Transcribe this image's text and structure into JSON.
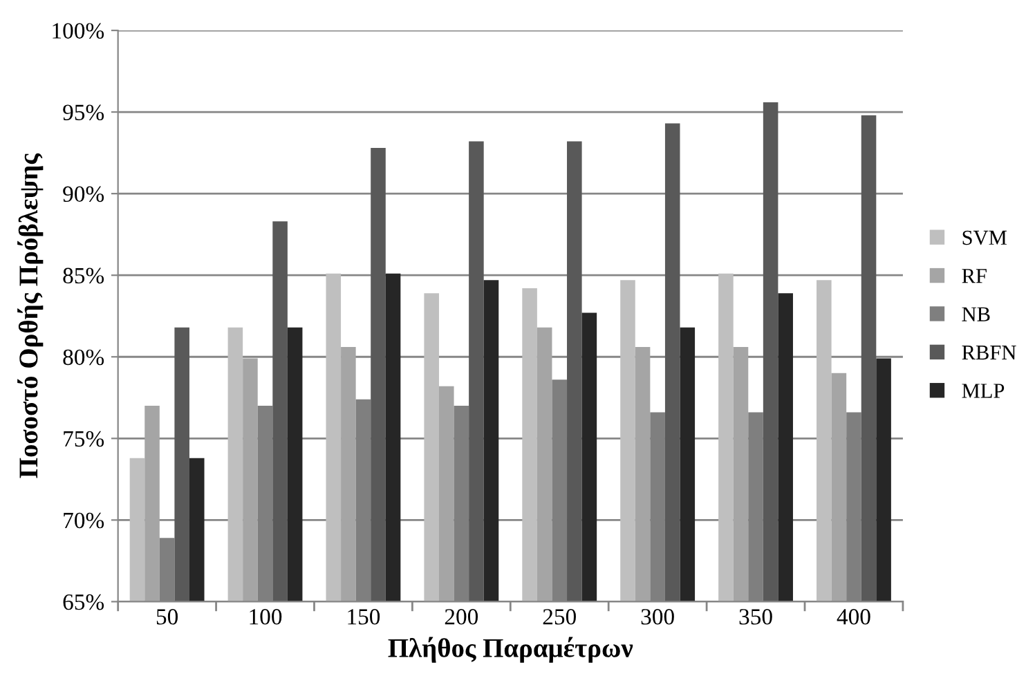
{
  "chart_data": {
    "type": "bar",
    "xlabel": "Πλήθος Παραμέτρων",
    "ylabel": "Ποσοστό Ορθής Πρόβλεψης",
    "categories": [
      "50",
      "100",
      "150",
      "200",
      "250",
      "300",
      "350",
      "400"
    ],
    "series": [
      {
        "name": "SVM",
        "color": "#bfbfbf",
        "values": [
          73.8,
          81.8,
          85.1,
          83.9,
          84.2,
          84.7,
          85.1,
          84.7
        ]
      },
      {
        "name": "RF",
        "color": "#a5a5a5",
        "values": [
          77.0,
          79.9,
          80.6,
          78.2,
          81.8,
          80.6,
          80.6,
          79.0
        ]
      },
      {
        "name": "NB",
        "color": "#7f7f7f",
        "values": [
          68.9,
          77.0,
          77.4,
          77.0,
          78.6,
          76.6,
          76.6,
          76.6
        ]
      },
      {
        "name": "RBFN",
        "color": "#595959",
        "values": [
          81.8,
          88.3,
          92.8,
          93.2,
          93.2,
          94.3,
          95.6,
          94.8
        ]
      },
      {
        "name": "MLP",
        "color": "#262626",
        "values": [
          73.8,
          81.8,
          85.1,
          84.7,
          82.7,
          81.8,
          83.9,
          79.9
        ]
      }
    ],
    "ylim": [
      65,
      100
    ],
    "yticks": [
      {
        "value": 65,
        "label": "65%"
      },
      {
        "value": 70,
        "label": "70%"
      },
      {
        "value": 75,
        "label": "75%"
      },
      {
        "value": 80,
        "label": "80%"
      },
      {
        "value": 85,
        "label": "85%"
      },
      {
        "value": 90,
        "label": "90%"
      },
      {
        "value": 95,
        "label": "95%"
      },
      {
        "value": 100,
        "label": "100%"
      }
    ],
    "grid": "y",
    "legend": "right"
  }
}
